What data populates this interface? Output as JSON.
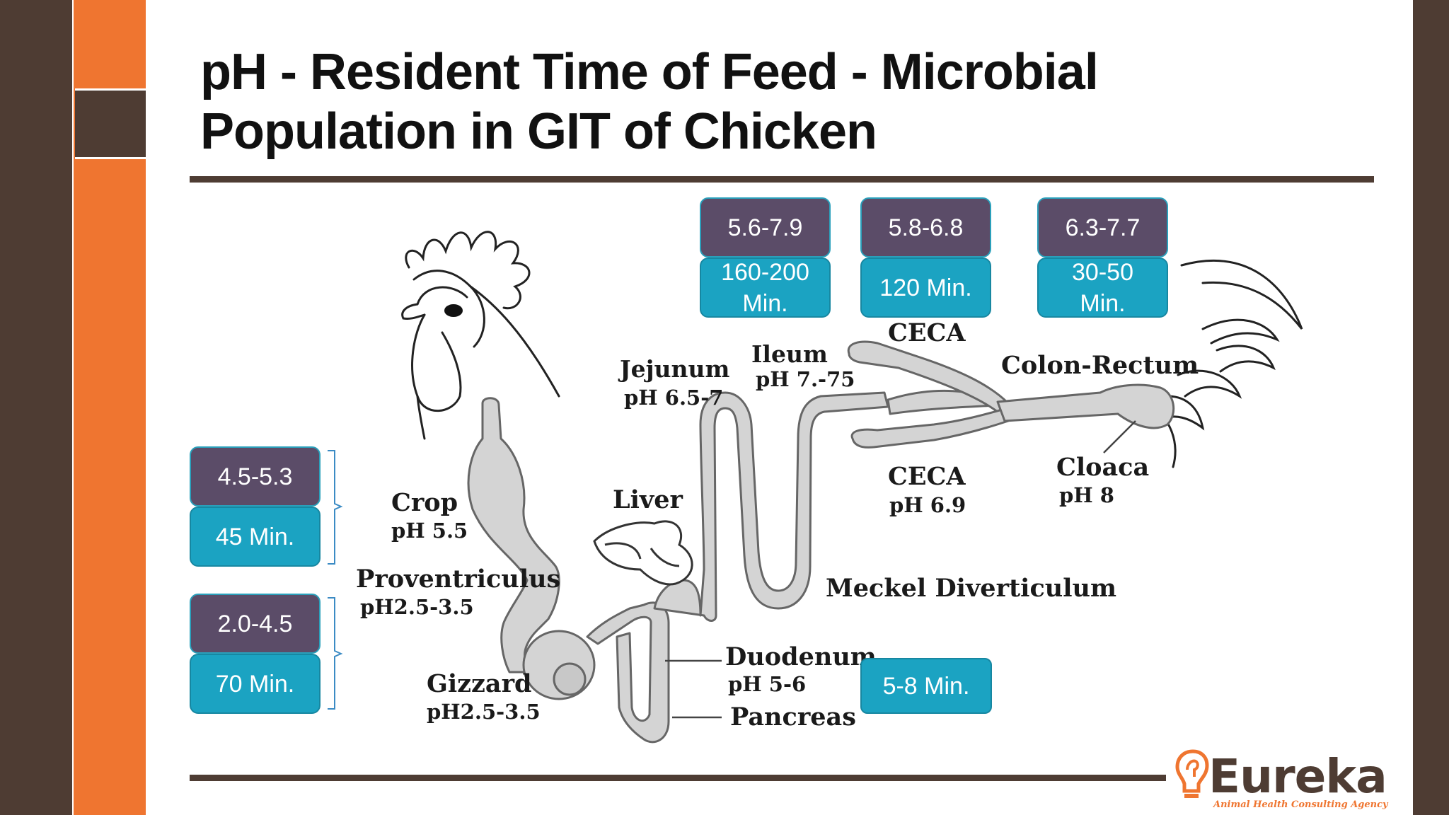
{
  "slide": {
    "title": "pH - Resident Time of Feed - Microbial Population in GIT of Chicken"
  },
  "boxes": {
    "crop_ph": "4.5-5.3",
    "crop_time": "45 Min.",
    "proventriculus_ph": "2.0-4.5",
    "proventriculus_time": "70 Min.",
    "jejunum_ph": "5.6-7.9",
    "jejunum_time": "160-200\nMin.",
    "ileum_ph": "5.8-6.8",
    "ileum_time": "120 Min.",
    "ceca_ph": "6.3-7.7",
    "ceca_time": "30-50\nMin.",
    "duodenum_time": "5-8 Min."
  },
  "labels": {
    "jejunum": "Jejunum",
    "jejunum_ph": "pH 6.5-7",
    "ileum": "Ileum",
    "ileum_ph": "pH 7.-75",
    "ceca_top": "CECA",
    "colon_rectum": "Colon-Rectum",
    "ceca_bottom": "CECA",
    "ceca_bottom_ph": "pH 6.9",
    "cloaca": "Cloaca",
    "cloaca_ph": "pH 8",
    "crop": "Crop",
    "crop_ph": "pH 5.5",
    "liver": "Liver",
    "proventriculus": "Proventriculus",
    "proventriculus_ph": "pH2.5-3.5",
    "meckel": "Meckel Diverticulum",
    "duodenum": "Duodenum",
    "duodenum_ph": "pH 5-6",
    "gizzard": "Gizzard",
    "gizzard_ph": "pH2.5-3.5",
    "pancreas": "Pancreas"
  },
  "logo": {
    "name": "Eureka",
    "tagline": "Animal Health Consulting Agency"
  },
  "colors": {
    "brown": "#4e3c33",
    "orange": "#ef7530",
    "ph_box": "#5b4c68",
    "time_box": "#1ba3c2",
    "tract": "#d4d4d4"
  }
}
